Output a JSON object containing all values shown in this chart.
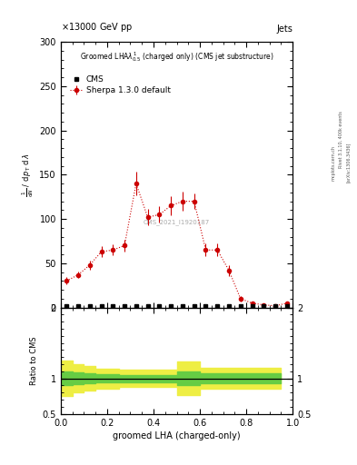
{
  "title_top_left": "13000 GeV pp",
  "title_top_right": "Jets",
  "plot_title": "Groomed LHA$\\lambda^{1}_{0.5}$ (charged only) (CMS jet substructure)",
  "cms_label": "CMS_2021_I1920187",
  "rivet_label": "Rivet 3.1.10, 400k events",
  "arxiv_label": "[arXiv:1306.3436]",
  "mcplots_label": "mcplots.cern.ch",
  "ylabel_ratio": "Ratio to CMS",
  "xlabel": "groomed LHA (charged-only)",
  "sherpa_x": [
    0.025,
    0.075,
    0.125,
    0.175,
    0.225,
    0.275,
    0.325,
    0.375,
    0.425,
    0.475,
    0.525,
    0.575,
    0.625,
    0.675,
    0.725,
    0.775,
    0.825,
    0.875,
    0.925,
    0.975
  ],
  "sherpa_y": [
    30,
    37,
    48,
    63,
    65,
    70,
    140,
    102,
    105,
    115,
    120,
    120,
    65,
    65,
    42,
    10,
    5,
    3,
    2,
    5
  ],
  "sherpa_yerr": [
    4,
    4,
    5,
    6,
    6,
    7,
    13,
    9,
    9,
    11,
    11,
    9,
    7,
    7,
    6,
    3,
    2,
    1,
    1,
    2
  ],
  "cms_x": [
    0.025,
    0.075,
    0.125,
    0.175,
    0.225,
    0.275,
    0.325,
    0.375,
    0.425,
    0.475,
    0.525,
    0.575,
    0.625,
    0.675,
    0.725,
    0.775,
    0.825,
    0.875,
    0.925,
    0.975
  ],
  "cms_y": [
    2,
    2,
    2,
    2,
    2,
    2,
    2,
    2,
    2,
    2,
    2,
    2,
    2,
    2,
    2,
    2,
    2,
    2,
    2,
    2
  ],
  "ratio_x_edges": [
    0.0,
    0.05,
    0.1,
    0.15,
    0.2,
    0.25,
    0.3,
    0.35,
    0.4,
    0.45,
    0.5,
    0.55,
    0.6,
    0.65,
    0.7,
    0.75,
    0.8,
    0.85,
    0.9,
    0.95,
    1.0
  ],
  "ratio_green_lo": [
    0.9,
    0.92,
    0.93,
    0.94,
    0.94,
    0.95,
    0.95,
    0.95,
    0.95,
    0.95,
    0.9,
    0.9,
    0.93,
    0.93,
    0.93,
    0.93,
    0.93,
    0.93,
    0.93,
    0.93
  ],
  "ratio_green_hi": [
    1.1,
    1.08,
    1.07,
    1.06,
    1.06,
    1.05,
    1.05,
    1.05,
    1.05,
    1.05,
    1.1,
    1.1,
    1.07,
    1.07,
    1.07,
    1.07,
    1.07,
    1.07,
    1.07,
    1.07
  ],
  "ratio_yellow_lo": [
    0.75,
    0.8,
    0.83,
    0.86,
    0.86,
    0.88,
    0.88,
    0.88,
    0.88,
    0.88,
    0.76,
    0.76,
    0.85,
    0.85,
    0.85,
    0.85,
    0.85,
    0.85,
    0.85,
    0.85
  ],
  "ratio_yellow_hi": [
    1.25,
    1.2,
    1.17,
    1.14,
    1.14,
    1.12,
    1.12,
    1.12,
    1.12,
    1.12,
    1.24,
    1.24,
    1.15,
    1.15,
    1.15,
    1.15,
    1.15,
    1.15,
    1.15,
    1.15
  ],
  "sherpa_color": "#cc0000",
  "cms_color": "black",
  "green_color": "#66cc44",
  "yellow_color": "#eeee44",
  "ylim_main": [
    0,
    300
  ],
  "ylim_ratio": [
    0.5,
    2.0
  ],
  "xlim": [
    0,
    1
  ],
  "yticks_main": [
    0,
    50,
    100,
    150,
    200,
    250,
    300
  ],
  "ratio_yticks": [
    0.5,
    1.0,
    2.0
  ],
  "ratio_yticklabels": [
    "0.5",
    "1",
    "2"
  ],
  "background_color": "white"
}
